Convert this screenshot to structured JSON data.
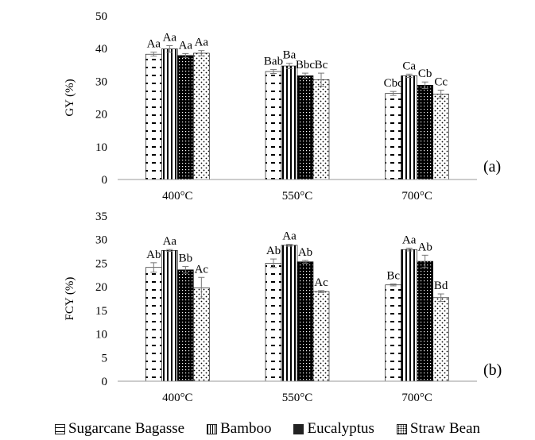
{
  "chart_data": [
    {
      "type": "bar",
      "categories": [
        "400°C",
        "550°C",
        "700°C"
      ],
      "ylabel": "GY (%)",
      "ylim": [
        0,
        50
      ],
      "yticks": [
        0,
        10,
        20,
        30,
        40,
        50
      ],
      "panel_label": "(a)",
      "series": [
        {
          "name": "Sugarcane Bagasse",
          "values": [
            38.3,
            33.0,
            26.3
          ],
          "errors": [
            0.6,
            0.6,
            0.6
          ],
          "labels": [
            "Aa",
            "Bab",
            "Cbc"
          ]
        },
        {
          "name": "Bamboo",
          "values": [
            39.9,
            34.7,
            31.7
          ],
          "errors": [
            1.0,
            0.8,
            0.5
          ],
          "labels": [
            "Aa",
            "Ba",
            "Ca"
          ]
        },
        {
          "name": "Eucalyptus",
          "values": [
            37.9,
            31.7,
            28.8
          ],
          "errors": [
            0.6,
            0.8,
            1.0
          ],
          "labels": [
            "Aa",
            "Bbc",
            "Cb"
          ]
        },
        {
          "name": "Straw Bean",
          "values": [
            38.6,
            30.5,
            26.1
          ],
          "errors": [
            0.8,
            2.0,
            1.2
          ],
          "labels": [
            "Aa",
            "Bc",
            "Cc"
          ]
        }
      ]
    },
    {
      "type": "bar",
      "categories": [
        "400°C",
        "550°C",
        "700°C"
      ],
      "ylabel": "FCY (%)",
      "ylim": [
        0,
        35
      ],
      "yticks": [
        0,
        5,
        10,
        15,
        20,
        25,
        30,
        35
      ],
      "panel_label": "(b)",
      "series": [
        {
          "name": "Sugarcane Bagasse",
          "values": [
            24.1,
            25.0,
            20.4
          ],
          "errors": [
            1.0,
            0.9,
            0.2
          ],
          "labels": [
            "Ab",
            "Ab",
            "Bc"
          ]
        },
        {
          "name": "Bamboo",
          "values": [
            27.7,
            28.8,
            27.9
          ],
          "errors": [
            0.2,
            0.2,
            0.3
          ],
          "labels": [
            "Aa",
            "Aa",
            "Aa"
          ]
        },
        {
          "name": "Eucalyptus",
          "values": [
            23.6,
            25.3,
            25.4
          ],
          "errors": [
            0.7,
            0.3,
            1.3
          ],
          "labels": [
            "Bb",
            "Ab",
            "Ab"
          ]
        },
        {
          "name": "Straw Bean",
          "values": [
            19.8,
            19.0,
            17.7
          ],
          "errors": [
            2.2,
            0.2,
            0.8
          ],
          "labels": [
            "Ac",
            "Ac",
            "Bd"
          ]
        }
      ]
    }
  ],
  "legend": [
    {
      "label": "Sugarcane Bagasse",
      "pattern": "dash"
    },
    {
      "label": "Bamboo",
      "pattern": "vstripe"
    },
    {
      "label": "Eucalyptus",
      "pattern": "dense"
    },
    {
      "label": "Straw Bean",
      "pattern": "dots"
    }
  ],
  "colors": {
    "ink": "#000000",
    "bar_fill": "#ffffff",
    "error_bar": "#777777"
  }
}
